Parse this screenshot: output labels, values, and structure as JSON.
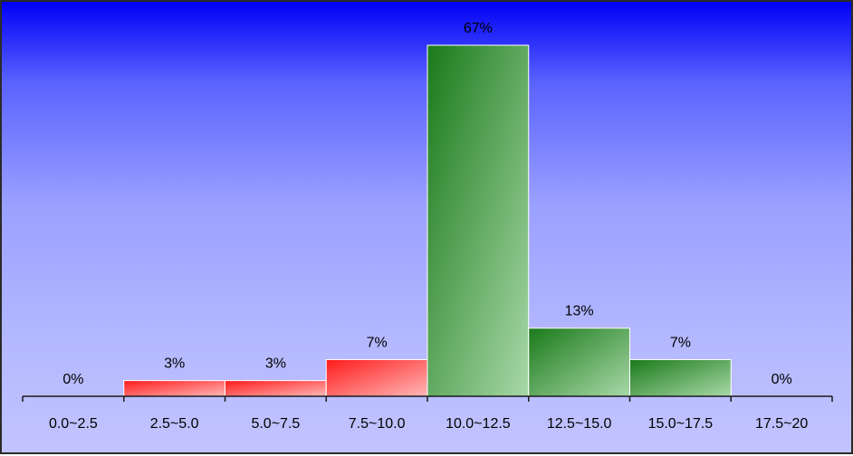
{
  "chart_data": {
    "type": "bar",
    "categories": [
      "0.0~2.5",
      "2.5~5.0",
      "5.0~7.5",
      "7.5~10.0",
      "10.0~12.5",
      "12.5~15.0",
      "15.0~17.5",
      "17.5~20"
    ],
    "values": [
      0,
      3,
      3,
      7,
      67,
      13,
      7,
      0
    ],
    "data_labels": [
      "0%",
      "3%",
      "3%",
      "7%",
      "67%",
      "13%",
      "7%",
      "0%"
    ],
    "bar_colors": [
      "red",
      "red",
      "red",
      "red",
      "green",
      "green",
      "green",
      "green"
    ],
    "title": "",
    "xlabel": "",
    "ylabel": "",
    "ylim": [
      0,
      67
    ],
    "grid": false,
    "legend": "none"
  },
  "colors": {
    "background_top": "#0000f5",
    "background_bottom": "#c2c4ff",
    "red_dark": "#ff1a1a",
    "red_light": "#ffb8b8",
    "green_dark": "#1a7a1a",
    "green_light": "#a8d8a8"
  }
}
